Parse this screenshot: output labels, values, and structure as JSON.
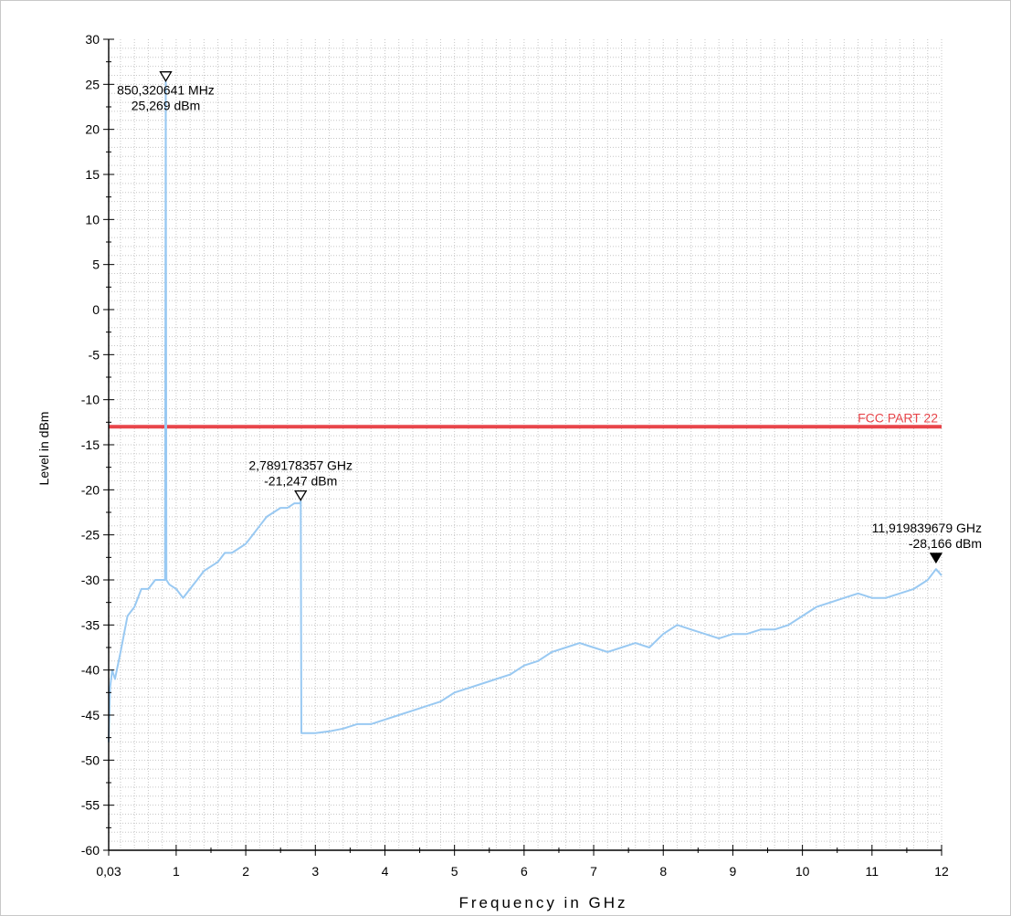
{
  "chart_data": {
    "type": "line",
    "xlabel": "Frequency in GHz",
    "ylabel": "Level in dBm",
    "xlim": [
      0.03,
      12
    ],
    "ylim": [
      -60,
      30
    ],
    "x_ticks": [
      0.03,
      1,
      2,
      3,
      4,
      5,
      6,
      7,
      8,
      9,
      10,
      11,
      12
    ],
    "x_tick_labels": [
      "0,03",
      "1",
      "2",
      "3",
      "4",
      "5",
      "6",
      "7",
      "8",
      "9",
      "10",
      "11",
      "12"
    ],
    "y_ticks": [
      30,
      25,
      20,
      15,
      10,
      5,
      0,
      -5,
      -10,
      -15,
      -20,
      -25,
      -30,
      -35,
      -40,
      -45,
      -50,
      -55,
      -60
    ],
    "y_tick_labels": [
      "30",
      "25",
      "20",
      "15",
      "10",
      "5",
      "0",
      "-5",
      "-10",
      "-15",
      "-20",
      "-25",
      "-30",
      "-35",
      "-40",
      "-45",
      "-50",
      "-55",
      "-60"
    ],
    "grid": true,
    "series": [
      {
        "color": "#99c9f2",
        "x": [
          0.03,
          0.05,
          0.08,
          0.12,
          0.2,
          0.3,
          0.4,
          0.5,
          0.6,
          0.7,
          0.8,
          0.84,
          0.85,
          0.86,
          0.9,
          1.0,
          1.1,
          1.2,
          1.3,
          1.4,
          1.5,
          1.6,
          1.7,
          1.8,
          1.9,
          2.0,
          2.1,
          2.2,
          2.3,
          2.4,
          2.5,
          2.6,
          2.7,
          2.78,
          2.79,
          2.8,
          2.9,
          3.0,
          3.2,
          3.4,
          3.6,
          3.8,
          4.0,
          4.2,
          4.4,
          4.6,
          4.8,
          5.0,
          5.2,
          5.4,
          5.6,
          5.8,
          6.0,
          6.2,
          6.4,
          6.6,
          6.8,
          7.0,
          7.2,
          7.4,
          7.6,
          7.8,
          8.0,
          8.2,
          8.4,
          8.6,
          8.8,
          9.0,
          9.2,
          9.4,
          9.6,
          9.8,
          10.0,
          10.2,
          10.4,
          10.6,
          10.8,
          11.0,
          11.2,
          11.4,
          11.6,
          11.8,
          11.92,
          12.0
        ],
        "y": [
          -48,
          -42,
          -40,
          -41,
          -38,
          -34,
          -33,
          -31,
          -31,
          -30,
          -30,
          -30,
          25.27,
          -30,
          -30.5,
          -31,
          -32,
          -31,
          -30,
          -29,
          -28.5,
          -28,
          -27,
          -27,
          -26.5,
          -26,
          -25,
          -24,
          -23,
          -22.5,
          -22,
          -22,
          -21.5,
          -21.5,
          -21.25,
          -47,
          -47,
          -47,
          -46.8,
          -46.5,
          -46,
          -46,
          -45.5,
          -45,
          -44.5,
          -44,
          -43.5,
          -42.5,
          -42,
          -41.5,
          -41,
          -40.5,
          -39.5,
          -39,
          -38,
          -37.5,
          -37,
          -37.5,
          -38,
          -37.5,
          -37,
          -37.5,
          -36,
          -35,
          -35.5,
          -36,
          -36.5,
          -36,
          -36,
          -35.5,
          -35.5,
          -35,
          -34,
          -33,
          -32.5,
          -32,
          -31.5,
          -32,
          -32,
          -31.5,
          -31,
          -30,
          -28.8,
          -29.5
        ]
      }
    ],
    "limit_line": {
      "label": "FCC  PART  22",
      "y": -13,
      "color": "#e8454a"
    },
    "markers": [
      {
        "x": 0.850320641,
        "y": 25.269,
        "filled": false,
        "label_freq": "850,320641 MHz",
        "label_level": "25,269 dBm"
      },
      {
        "x": 2.789178357,
        "y": -21.247,
        "filled": false,
        "label_freq": "2,789178357 GHz",
        "label_level": "-21,247 dBm"
      },
      {
        "x": 11.919839679,
        "y": -28.166,
        "filled": true,
        "label_freq": "11,919839679 GHz",
        "label_level": "-28,166 dBm"
      }
    ]
  }
}
